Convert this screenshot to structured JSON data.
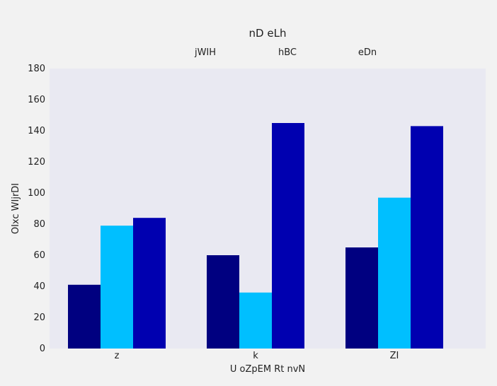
{
  "chart_data": {
    "type": "bar",
    "title": "nD eLh",
    "xlabel": "U oZpEM Rt nvN",
    "ylabel": "OIxc WIjrDI",
    "categories": [
      "z",
      "k",
      "ZI"
    ],
    "series": [
      {
        "name": "jWIH",
        "color": "#000080",
        "values": [
          41,
          60,
          65
        ]
      },
      {
        "name": "hBC",
        "color": "#00bfff",
        "values": [
          79,
          36,
          97
        ]
      },
      {
        "name": "eDn",
        "color": "#0000b0",
        "values": [
          84,
          145,
          143
        ]
      }
    ],
    "ylim": [
      0,
      180
    ],
    "yticks": [
      0,
      20,
      40,
      60,
      80,
      100,
      120,
      140,
      160,
      180
    ],
    "grid": false,
    "legend_position": "top",
    "plot_background": "#e9e9f2"
  }
}
